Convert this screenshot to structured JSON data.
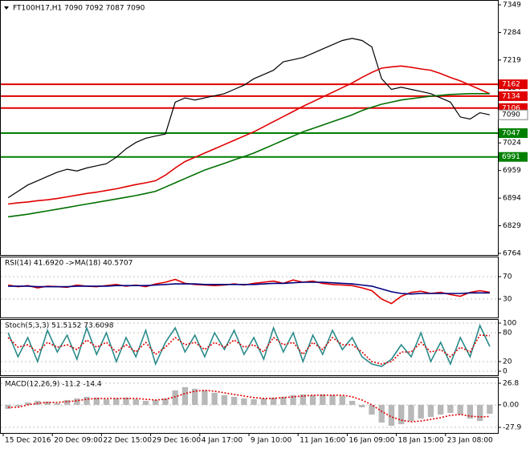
{
  "chart_data": [
    {
      "type": "line",
      "title": "FT100H17,H1  7090 7092 7087 7090",
      "categories": [
        "15 Dec 2016",
        null,
        null,
        null,
        null,
        "20 Dec 09:00",
        null,
        null,
        null,
        null,
        "22 Dec 15:00",
        null,
        null,
        null,
        null,
        "29 Dec 16:00",
        null,
        null,
        null,
        null,
        "4 Jan 17:00",
        null,
        null,
        null,
        null,
        "9 Jan 10:00",
        null,
        null,
        null,
        null,
        "11 Jan 16:00",
        null,
        null,
        null,
        null,
        "16 Jan 09:00",
        null,
        null,
        null,
        null,
        "18 Jan 15:00",
        null,
        null,
        null,
        null,
        "23 Jan 08:00",
        null,
        null,
        null,
        null
      ],
      "series": [
        {
          "color": "#000000",
          "values": [
            6895,
            6910,
            6925,
            6935,
            6945,
            6955,
            6962,
            6958,
            6965,
            6970,
            6975,
            6990,
            7010,
            7025,
            7035,
            7040,
            7045,
            7120,
            7130,
            7125,
            7130,
            7135,
            7140,
            7150,
            7160,
            7175,
            7185,
            7195,
            7215,
            7220,
            7225,
            7235,
            7245,
            7255,
            7265,
            7270,
            7265,
            7250,
            7175,
            7150,
            7155,
            7150,
            7145,
            7140,
            7130,
            7120,
            7085,
            7080,
            7095,
            7090
          ]
        },
        {
          "color": "#e00000",
          "values": [
            6880,
            6883,
            6885,
            6888,
            6890,
            6893,
            6897,
            6901,
            6905,
            6908,
            6912,
            6916,
            6921,
            6926,
            6930,
            6935,
            6948,
            6965,
            6980,
            6990,
            7000,
            7010,
            7020,
            7030,
            7040,
            7050,
            7062,
            7074,
            7086,
            7098,
            7110,
            7121,
            7132,
            7143,
            7154,
            7165,
            7178,
            7190,
            7200,
            7203,
            7205,
            7202,
            7198,
            7195,
            7187,
            7178,
            7170,
            7160,
            7150,
            7140
          ]
        },
        {
          "color": "#007000",
          "values": [
            6850,
            6853,
            6856,
            6860,
            6864,
            6868,
            6872,
            6876,
            6880,
            6884,
            6888,
            6892,
            6896,
            6900,
            6905,
            6910,
            6920,
            6930,
            6940,
            6950,
            6960,
            6968,
            6976,
            6984,
            6992,
            7000,
            7010,
            7020,
            7030,
            7040,
            7050,
            7058,
            7066,
            7074,
            7082,
            7090,
            7100,
            7108,
            7115,
            7120,
            7125,
            7128,
            7131,
            7134,
            7136,
            7138,
            7139,
            7140,
            7140,
            7140
          ]
        }
      ],
      "levels": [
        {
          "value": 7162,
          "color": "#e00000"
        },
        {
          "value": 7134,
          "color": "#e00000"
        },
        {
          "value": 7106,
          "color": "#e00000"
        },
        {
          "value": 7047,
          "color": "#008000"
        },
        {
          "value": 6991,
          "color": "#008000"
        }
      ],
      "last_price": 7090,
      "ylim": [
        6764,
        7349
      ],
      "yticks": [
        7349,
        7284,
        7219,
        7154,
        7089,
        7024,
        6959,
        6894,
        6829,
        6764
      ]
    },
    {
      "type": "line",
      "title": "RSI(14) 41.6920  ->MA(18) 40.5707",
      "series": [
        {
          "color": "#e00000",
          "values": [
            55,
            52,
            54,
            50,
            53,
            52,
            51,
            55,
            53,
            52,
            54,
            56,
            53,
            55,
            52,
            57,
            60,
            65,
            58,
            56,
            55,
            54,
            55,
            57,
            55,
            58,
            60,
            62,
            58,
            64,
            60,
            62,
            58,
            56,
            55,
            54,
            50,
            45,
            30,
            22,
            35,
            42,
            44,
            40,
            42,
            38,
            35,
            42,
            45,
            42
          ]
        },
        {
          "color": "#000080",
          "values": [
            53,
            53,
            53,
            52,
            52,
            52,
            52,
            53,
            53,
            53,
            53,
            54,
            54,
            54,
            54,
            55,
            56,
            57,
            57,
            57,
            56,
            56,
            56,
            56,
            56,
            56,
            57,
            58,
            58,
            59,
            60,
            60,
            60,
            59,
            58,
            57,
            55,
            53,
            48,
            43,
            40,
            39,
            40,
            40,
            40,
            40,
            40,
            41,
            41,
            41
          ]
        }
      ],
      "ylim": [
        0,
        100
      ],
      "yticks": [
        70,
        30
      ]
    },
    {
      "type": "line",
      "title": "Stoch(5,3,3) 51.5152 73.6098",
      "series": [
        {
          "color": "#2a8a8a",
          "values": [
            80,
            30,
            70,
            20,
            85,
            40,
            75,
            25,
            90,
            35,
            80,
            20,
            70,
            30,
            85,
            15,
            60,
            90,
            40,
            75,
            30,
            80,
            45,
            85,
            35,
            70,
            25,
            90,
            40,
            80,
            20,
            75,
            35,
            85,
            45,
            70,
            30,
            15,
            10,
            25,
            55,
            30,
            80,
            20,
            60,
            15,
            70,
            30,
            95,
            51.5
          ]
        },
        {
          "color": "#e00000",
          "dash": true,
          "values": [
            70,
            50,
            55,
            40,
            60,
            50,
            55,
            45,
            65,
            50,
            60,
            40,
            55,
            40,
            60,
            35,
            50,
            70,
            55,
            60,
            45,
            60,
            50,
            65,
            50,
            55,
            40,
            70,
            55,
            60,
            35,
            60,
            45,
            70,
            55,
            55,
            40,
            20,
            15,
            20,
            40,
            40,
            60,
            40,
            45,
            30,
            50,
            40,
            75,
            73.6
          ]
        }
      ],
      "ylim": [
        0,
        100
      ],
      "yticks": [
        100,
        80,
        20,
        0
      ]
    },
    {
      "type": "bar",
      "title": "MACD(12,26,9) -11.2 -14.4",
      "series": [
        {
          "color": "#b8b8b8",
          "values": [
            -5,
            -2,
            3,
            5,
            4,
            2,
            6,
            8,
            10,
            9,
            7,
            8,
            9,
            7,
            5,
            6,
            8,
            18,
            22,
            20,
            18,
            15,
            12,
            10,
            8,
            7,
            8,
            9,
            10,
            12,
            13,
            12,
            13,
            12,
            11,
            5,
            -3,
            -12,
            -22,
            -26,
            -24,
            -20,
            -17,
            -15,
            -12,
            -10,
            -12,
            -17,
            -20,
            -11
          ]
        },
        {
          "color": "#e00000",
          "dash": true,
          "values": [
            -3,
            -3,
            0,
            2,
            3,
            3,
            4,
            5,
            7,
            8,
            8,
            8,
            8,
            8,
            7,
            6,
            7,
            10,
            14,
            17,
            18,
            17,
            15,
            13,
            11,
            9,
            8,
            8,
            9,
            10,
            11,
            12,
            12,
            12,
            12,
            10,
            6,
            0,
            -8,
            -15,
            -19,
            -21,
            -20,
            -18,
            -16,
            -13,
            -12,
            -14,
            -15,
            -14.4
          ]
        }
      ],
      "ylim": [
        -27.9,
        26.8
      ],
      "yticks": [
        26.8,
        {
          "value": 0,
          "label": "0.00"
        },
        -27.9
      ]
    }
  ]
}
